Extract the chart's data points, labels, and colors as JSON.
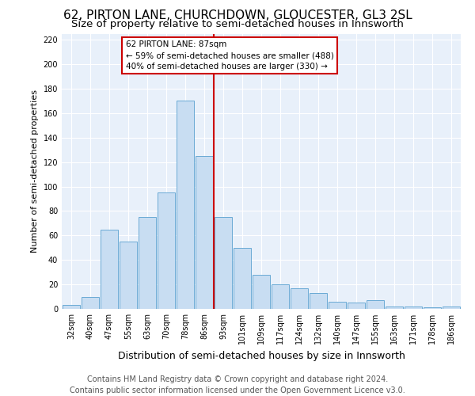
{
  "title": "62, PIRTON LANE, CHURCHDOWN, GLOUCESTER, GL3 2SL",
  "subtitle": "Size of property relative to semi-detached houses in Innsworth",
  "xlabel": "Distribution of semi-detached houses by size in Innsworth",
  "ylabel": "Number of semi-detached properties",
  "categories": [
    "32sqm",
    "40sqm",
    "47sqm",
    "55sqm",
    "63sqm",
    "70sqm",
    "78sqm",
    "86sqm",
    "93sqm",
    "101sqm",
    "109sqm",
    "117sqm",
    "124sqm",
    "132sqm",
    "140sqm",
    "147sqm",
    "155sqm",
    "163sqm",
    "171sqm",
    "178sqm",
    "186sqm"
  ],
  "values": [
    3,
    10,
    65,
    55,
    75,
    95,
    170,
    125,
    75,
    50,
    28,
    20,
    17,
    13,
    6,
    5,
    7,
    2,
    2,
    1,
    2
  ],
  "bar_color": "#c8ddf2",
  "bar_edge_color": "#6aaad4",
  "vline_color": "#cc0000",
  "annotation_box_color": "#cc0000",
  "annotation_title": "62 PIRTON LANE: 87sqm",
  "annotation_line1": "← 59% of semi-detached houses are smaller (488)",
  "annotation_line2": "40% of semi-detached houses are larger (330) →",
  "ylim": [
    0,
    225
  ],
  "yticks": [
    0,
    20,
    40,
    60,
    80,
    100,
    120,
    140,
    160,
    180,
    200,
    220
  ],
  "bg_color": "#e8f0fa",
  "grid_color": "#ffffff",
  "title_fontsize": 11,
  "subtitle_fontsize": 9.5,
  "xlabel_fontsize": 9,
  "ylabel_fontsize": 8,
  "tick_fontsize": 7,
  "annotation_fontsize": 7.5,
  "footer_fontsize": 7,
  "footer_line1": "Contains HM Land Registry data © Crown copyright and database right 2024.",
  "footer_line2": "Contains public sector information licensed under the Open Government Licence v3.0.",
  "vline_index": 7
}
